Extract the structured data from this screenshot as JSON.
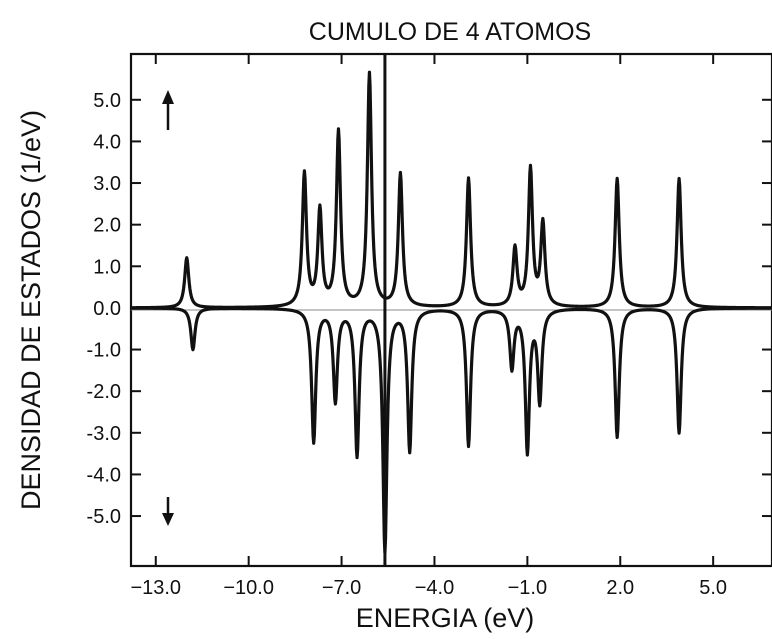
{
  "chart_data": {
    "type": "line",
    "title": "CUMULO DE 4 ATOMOS",
    "xlabel": "ENERGIA (eV)",
    "ylabel": "DENSIDAD DE ESTADOS (1/eV)",
    "xlim": [
      -13.8,
      6.9
    ],
    "ylim": [
      -6.2,
      6.1
    ],
    "x_ticks": [
      -13.0,
      -10.0,
      -7.0,
      -4.0,
      -1.0,
      2.0,
      5.0
    ],
    "x_tick_labels": [
      "−13.0",
      "−10.0",
      "−7.0",
      "−4.0",
      "−1.0",
      "2.0",
      "5.0"
    ],
    "y_ticks": [
      5.0,
      4.0,
      3.0,
      2.0,
      1.0,
      0.0,
      -1.0,
      -2.0,
      -3.0,
      -4.0,
      -5.0
    ],
    "y_tick_labels": [
      "5.0",
      "4.0",
      "3.0",
      "2.0",
      "1.0",
      "0.0",
      "-1.0",
      "-2.0",
      "-3.0",
      "-4.0",
      "-5.0"
    ],
    "fermi_level": -5.6,
    "broadening": 0.08,
    "spin_up_indicator": "↑",
    "spin_down_indicator": "↓",
    "series": [
      {
        "spin": "up",
        "peaks": [
          {
            "x": -12.0,
            "y": 1.2
          },
          {
            "x": -8.2,
            "y": 3.2
          },
          {
            "x": -7.7,
            "y": 2.3
          },
          {
            "x": -7.1,
            "y": 4.2
          },
          {
            "x": -6.1,
            "y": 5.6
          },
          {
            "x": -5.1,
            "y": 3.2
          },
          {
            "x": -2.9,
            "y": 3.1
          },
          {
            "x": -1.4,
            "y": 1.4
          },
          {
            "x": -0.9,
            "y": 3.3
          },
          {
            "x": -0.5,
            "y": 2.0
          },
          {
            "x": 1.9,
            "y": 3.1
          },
          {
            "x": 3.9,
            "y": 3.1
          }
        ]
      },
      {
        "spin": "down",
        "peaks": [
          {
            "x": -11.8,
            "y": -1.0
          },
          {
            "x": -7.9,
            "y": -3.2
          },
          {
            "x": -7.2,
            "y": -2.2
          },
          {
            "x": -6.5,
            "y": -3.5
          },
          {
            "x": -5.6,
            "y": -5.8
          },
          {
            "x": -4.8,
            "y": -3.4
          },
          {
            "x": -2.9,
            "y": -3.3
          },
          {
            "x": -1.5,
            "y": -1.4
          },
          {
            "x": -1.0,
            "y": -3.4
          },
          {
            "x": -0.6,
            "y": -2.2
          },
          {
            "x": 1.9,
            "y": -3.1
          },
          {
            "x": 3.9,
            "y": -3.0
          }
        ]
      }
    ]
  }
}
